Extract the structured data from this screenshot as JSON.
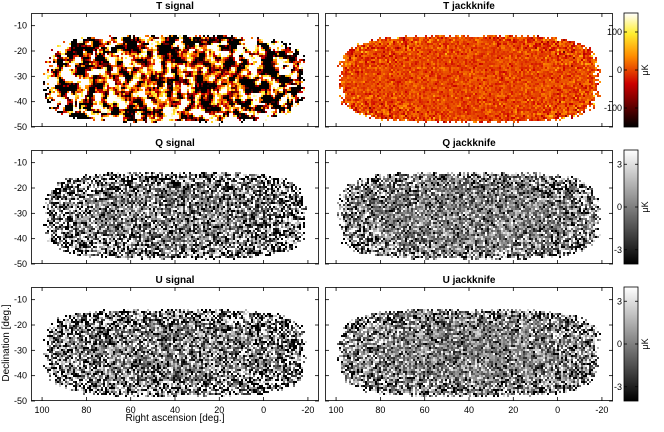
{
  "chart_data": {
    "type": "heatmap",
    "description": "",
    "xlabel": "Right ascension [deg.]",
    "ylabel": "Declination [deg.]",
    "x_ticks": [
      100,
      80,
      60,
      40,
      20,
      0,
      -20
    ],
    "y_ticks": [
      -10,
      -20,
      -30,
      -40,
      -50
    ],
    "xlim": [
      105,
      -25
    ],
    "ylim": [
      -50,
      -5
    ],
    "panels": [
      {
        "row": 0,
        "col": 0,
        "title": "T signal",
        "quantity": "T",
        "kind": "signal",
        "amplitude_uK": 150,
        "colormap": "hot"
      },
      {
        "row": 0,
        "col": 1,
        "title": "T jackknife",
        "quantity": "T",
        "kind": "jackknife",
        "amplitude_uK": 15,
        "colormap": "hot"
      },
      {
        "row": 1,
        "col": 0,
        "title": "Q signal",
        "quantity": "Q",
        "kind": "signal",
        "amplitude_uK": 3,
        "colormap": "gray"
      },
      {
        "row": 1,
        "col": 1,
        "title": "Q jackknife",
        "quantity": "Q",
        "kind": "jackknife",
        "amplitude_uK": 2,
        "colormap": "gray"
      },
      {
        "row": 2,
        "col": 0,
        "title": "U signal",
        "quantity": "U",
        "kind": "signal",
        "amplitude_uK": 3,
        "colormap": "gray"
      },
      {
        "row": 2,
        "col": 1,
        "title": "U jackknife",
        "quantity": "U",
        "kind": "jackknife",
        "amplitude_uK": 2,
        "colormap": "gray"
      }
    ],
    "colorbars": [
      {
        "row": 0,
        "colormap": "hot",
        "ticks": [
          100,
          0,
          -100
        ],
        "range": [
          -150,
          150
        ],
        "unit": "μK"
      },
      {
        "row": 1,
        "colormap": "gray",
        "ticks": [
          3,
          0,
          -3
        ],
        "range": [
          -4,
          4
        ],
        "unit": "μK"
      },
      {
        "row": 2,
        "colormap": "gray",
        "ticks": [
          3,
          0,
          -3
        ],
        "range": [
          -4,
          4
        ],
        "unit": "μK"
      }
    ],
    "grid": false
  }
}
